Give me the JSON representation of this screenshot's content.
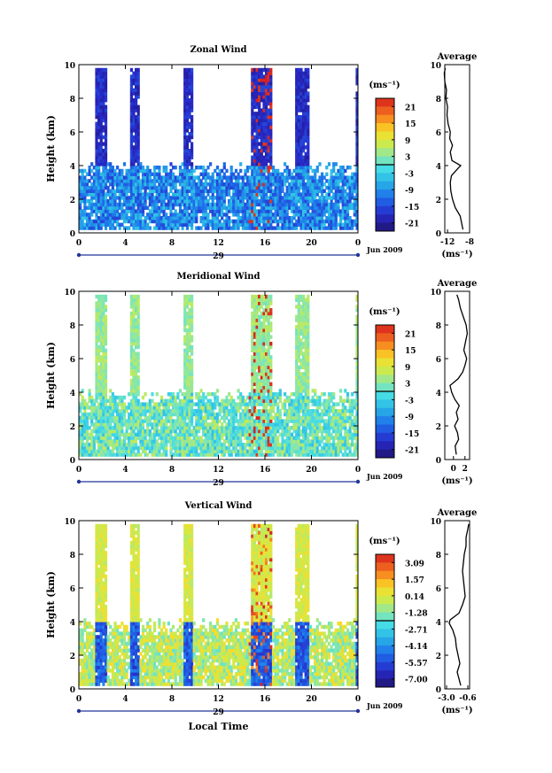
{
  "chart_data": [
    {
      "type": "heatmap",
      "title": "Zonal Wind",
      "ylabel": "Height (km)",
      "ylim": [
        0,
        10
      ],
      "xlim": [
        0,
        24
      ],
      "x_ticks": [
        "0",
        "4",
        "8",
        "12",
        "16",
        "20",
        "0"
      ],
      "y_ticks": [
        "0",
        "2",
        "4",
        "6",
        "8",
        "10"
      ],
      "date_label": "29",
      "month_label": "Jun 2009",
      "colorbar": {
        "unit": "(ms⁻¹)",
        "ticks": [
          "21",
          "15",
          "9",
          "3",
          "-3",
          "-9",
          "-15",
          "-21"
        ],
        "range": [
          -24,
          24
        ]
      },
      "base_value": -10,
      "average": {
        "title": "Average",
        "xlim": [
          -12.5,
          -8
        ],
        "x_ticks": [
          "-12",
          "-8"
        ],
        "xlabel": "(ms⁻¹)",
        "profile": [
          [
            0.2,
            -9.2
          ],
          [
            0.5,
            -9.4
          ],
          [
            1.0,
            -9.7
          ],
          [
            1.5,
            -10.6
          ],
          [
            2.0,
            -11.1
          ],
          [
            2.5,
            -11.4
          ],
          [
            3.0,
            -11.5
          ],
          [
            3.4,
            -11.3
          ],
          [
            3.8,
            -10.2
          ],
          [
            4.0,
            -9.6
          ],
          [
            4.3,
            -11.2
          ],
          [
            4.8,
            -11.5
          ],
          [
            5.2,
            -11.1
          ],
          [
            5.6,
            -11.6
          ],
          [
            6.0,
            -11.5
          ],
          [
            6.5,
            -11.9
          ],
          [
            7.0,
            -12.1
          ],
          [
            7.5,
            -12.0
          ],
          [
            8.0,
            -12.3
          ],
          [
            8.5,
            -12.2
          ],
          [
            9.0,
            -12.5
          ],
          [
            9.5,
            -12.6
          ],
          [
            9.8,
            -12.4
          ]
        ]
      }
    },
    {
      "type": "heatmap",
      "title": "Meridional Wind",
      "ylabel": "Height (km)",
      "ylim": [
        0,
        10
      ],
      "xlim": [
        0,
        24
      ],
      "x_ticks": [
        "0",
        "4",
        "8",
        "12",
        "16",
        "20",
        "0"
      ],
      "y_ticks": [
        "0",
        "2",
        "4",
        "6",
        "8",
        "10"
      ],
      "date_label": "29",
      "month_label": "Jun 2009",
      "colorbar": {
        "unit": "(ms⁻¹)",
        "ticks": [
          "21",
          "15",
          "9",
          "3",
          "-3",
          "-9",
          "-15",
          "-21"
        ],
        "range": [
          -24,
          24
        ]
      },
      "base_value": 1,
      "average": {
        "title": "Average",
        "xlim": [
          -1.5,
          2.8
        ],
        "x_ticks": [
          "0",
          "2"
        ],
        "xlabel": "(ms⁻¹)",
        "profile": [
          [
            0.3,
            0.5
          ],
          [
            0.8,
            0.3
          ],
          [
            1.2,
            0.9
          ],
          [
            1.6,
            0.7
          ],
          [
            2.0,
            0.2
          ],
          [
            2.4,
            0.8
          ],
          [
            2.8,
            0.5
          ],
          [
            3.2,
            1.0
          ],
          [
            3.6,
            0.2
          ],
          [
            4.0,
            -0.3
          ],
          [
            4.4,
            -0.6
          ],
          [
            4.8,
            0.8
          ],
          [
            5.2,
            1.6
          ],
          [
            5.6,
            2.0
          ],
          [
            6.0,
            2.3
          ],
          [
            6.5,
            1.8
          ],
          [
            7.0,
            2.1
          ],
          [
            7.5,
            2.4
          ],
          [
            8.0,
            2.2
          ],
          [
            8.5,
            1.7
          ],
          [
            9.0,
            1.2
          ],
          [
            9.5,
            0.9
          ],
          [
            9.8,
            0.6
          ]
        ]
      }
    },
    {
      "type": "heatmap",
      "title": "Vertical Wind",
      "ylabel": "Height (km)",
      "xlabel": "Local Time",
      "ylim": [
        0,
        10
      ],
      "xlim": [
        0,
        24
      ],
      "x_ticks": [
        "0",
        "4",
        "8",
        "12",
        "16",
        "20",
        "0"
      ],
      "y_ticks": [
        "0",
        "2",
        "4",
        "6",
        "8",
        "10"
      ],
      "date_label": "29",
      "month_label": "Jun 2009",
      "colorbar": {
        "unit": "(ms⁻¹)",
        "ticks": [
          "3.09",
          "1.57",
          "0.14",
          "-1.28",
          "-2.71",
          "-4.14",
          "-5.57",
          "-7.00"
        ],
        "range": [
          -7.7,
          3.8
        ]
      },
      "base_value": -0.4,
      "average": {
        "title": "Average",
        "xlim": [
          -3.2,
          -0.4
        ],
        "x_ticks": [
          "-3.0",
          "-0.6"
        ],
        "xlabel": "(ms⁻¹)",
        "profile": [
          [
            0.2,
            -1.4
          ],
          [
            0.6,
            -1.6
          ],
          [
            1.0,
            -1.8
          ],
          [
            1.5,
            -1.5
          ],
          [
            2.0,
            -1.7
          ],
          [
            2.5,
            -1.9
          ],
          [
            3.0,
            -2.0
          ],
          [
            3.5,
            -2.3
          ],
          [
            3.9,
            -2.7
          ],
          [
            4.1,
            -2.6
          ],
          [
            4.5,
            -1.6
          ],
          [
            5.0,
            -1.2
          ],
          [
            5.5,
            -0.9
          ],
          [
            6.0,
            -1.0
          ],
          [
            6.5,
            -1.1
          ],
          [
            7.0,
            -1.2
          ],
          [
            7.5,
            -1.1
          ],
          [
            8.0,
            -1.0
          ],
          [
            8.5,
            -0.8
          ],
          [
            9.0,
            -0.8
          ],
          [
            9.5,
            -0.6
          ],
          [
            9.8,
            -0.5
          ]
        ]
      }
    }
  ]
}
